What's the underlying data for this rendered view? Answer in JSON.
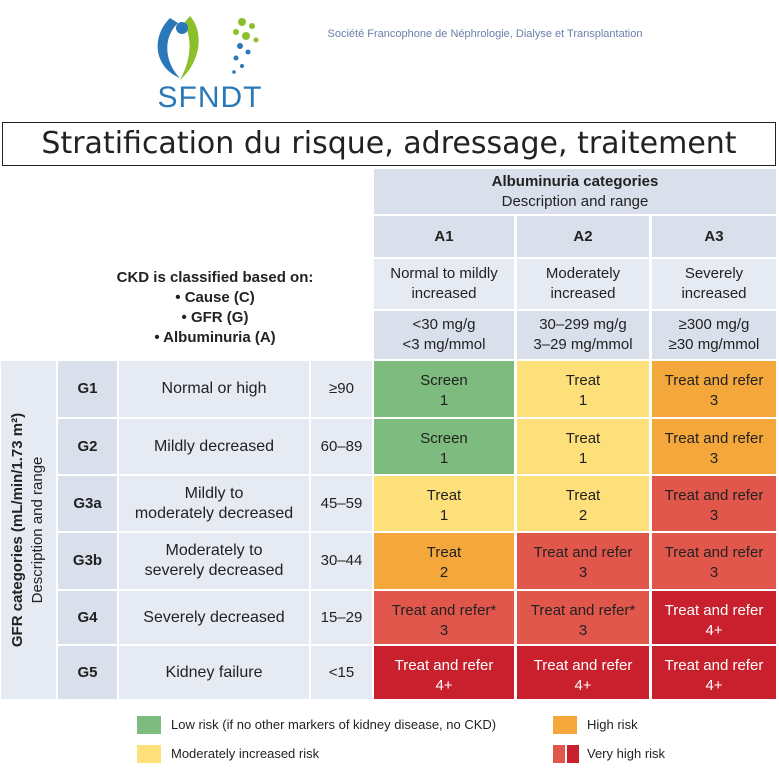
{
  "header": {
    "logo": "SFNDT",
    "organization": "Société Francophone de Néphrologie, Dialyse et Transplantation",
    "title": "Stratification du risque, adressage, traitement"
  },
  "table": {
    "albuminuria": {
      "title": "Albuminuria categories",
      "subtitle": "Description and range",
      "columns": [
        {
          "code": "A1",
          "description": [
            "Normal to mildly",
            "increased"
          ],
          "range": [
            "<30 mg/g",
            "<3 mg/mmol"
          ]
        },
        {
          "code": "A2",
          "description": [
            "Moderately",
            "increased"
          ],
          "range": [
            "30–299 mg/g",
            "3–29 mg/mmol"
          ]
        },
        {
          "code": "A3",
          "description": [
            "Severely",
            "increased"
          ],
          "range": [
            "≥300 mg/g",
            "≥30 mg/mmol"
          ]
        }
      ]
    },
    "classification": {
      "heading": "CKD is classified based on:",
      "items": [
        "• Cause (C)",
        "• GFR (G)",
        "• Albuminuria (A)"
      ]
    },
    "gfr": {
      "title": "GFR categories (mL/min/1.73 m²)",
      "subtitle": "Description and range",
      "rows": [
        {
          "code": "G1",
          "description": [
            "Normal or high"
          ],
          "range": "≥90",
          "cells": [
            {
              "text": "Screen",
              "number": "1",
              "color": "#7dbb7e"
            },
            {
              "text": "Treat",
              "number": "1",
              "color": "#fde07a"
            },
            {
              "text": "Treat and refer",
              "number": "3",
              "color": "#f4a73b"
            }
          ]
        },
        {
          "code": "G2",
          "description": [
            "Mildly decreased"
          ],
          "range": "60–89",
          "cells": [
            {
              "text": "Screen",
              "number": "1",
              "color": "#7dbb7e"
            },
            {
              "text": "Treat",
              "number": "1",
              "color": "#fde07a"
            },
            {
              "text": "Treat and refer",
              "number": "3",
              "color": "#f4a73b"
            }
          ]
        },
        {
          "code": "G3a",
          "description": [
            "Mildly to",
            "moderately decreased"
          ],
          "range": "45–59",
          "cells": [
            {
              "text": "Treat",
              "number": "1",
              "color": "#fde07a"
            },
            {
              "text": "Treat",
              "number": "2",
              "color": "#fde07a"
            },
            {
              "text": "Treat and refer",
              "number": "3",
              "color": "#e2574c"
            }
          ]
        },
        {
          "code": "G3b",
          "description": [
            "Moderately to",
            "severely decreased"
          ],
          "range": "30–44",
          "cells": [
            {
              "text": "Treat",
              "number": "2",
              "color": "#f4a73b"
            },
            {
              "text": "Treat and refer",
              "number": "3",
              "color": "#e2574c"
            },
            {
              "text": "Treat and refer",
              "number": "3",
              "color": "#e2574c"
            }
          ]
        },
        {
          "code": "G4",
          "description": [
            "Severely decreased"
          ],
          "range": "15–29",
          "cells": [
            {
              "text": "Treat and refer*",
              "number": "3",
              "color": "#e2574c"
            },
            {
              "text": "Treat and refer*",
              "number": "3",
              "color": "#e2574c"
            },
            {
              "text": "Treat and refer",
              "number": "4+",
              "color": "#c8202d"
            }
          ]
        },
        {
          "code": "G5",
          "description": [
            "Kidney failure"
          ],
          "range": "<15",
          "cells": [
            {
              "text": "Treat and refer",
              "number": "4+",
              "color": "#c8202d"
            },
            {
              "text": "Treat and refer",
              "number": "4+",
              "color": "#c8202d"
            },
            {
              "text": "Treat and refer",
              "number": "4+",
              "color": "#c8202d"
            }
          ]
        }
      ]
    }
  },
  "legend": [
    {
      "label": "Low risk (if no other markers of kidney disease, no CKD)",
      "colors": [
        "#7dbb7e"
      ]
    },
    {
      "label": "High risk",
      "colors": [
        "#f4a73b"
      ]
    },
    {
      "label": "Moderately increased risk",
      "colors": [
        "#fde07a"
      ]
    },
    {
      "label": "Very high risk",
      "colors": [
        "#e2574c",
        "#c8202d"
      ]
    }
  ]
}
